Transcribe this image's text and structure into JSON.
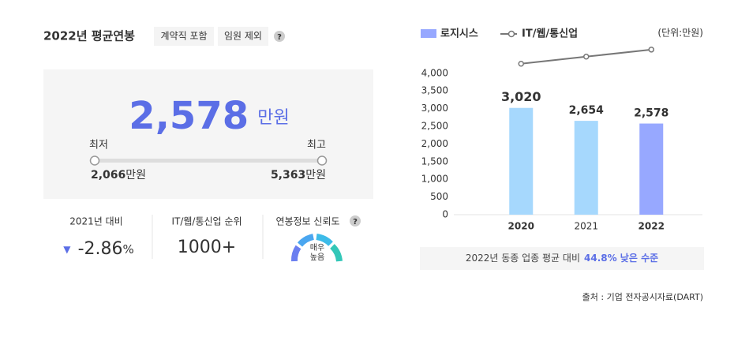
{
  "summary": {
    "title": "2022년 평균연봉",
    "tags": [
      "계약직 포함",
      "임원 제외"
    ],
    "help": "?",
    "amount": "2,578",
    "amount_unit": "만원",
    "min_label": "최저",
    "max_label": "최고",
    "min_amount": "2,066",
    "min_unit": "만원",
    "max_amount": "5,363",
    "max_unit": "만원"
  },
  "stats": [
    {
      "label": "2021년 대비",
      "arrow": "▼",
      "value": "-2.86",
      "unit": "%"
    },
    {
      "label": "IT/웹/통신업 순위",
      "value": "1000+"
    },
    {
      "label": "연봉정보 신뢰도",
      "help": "?",
      "gauge_text": [
        "매우",
        "높음"
      ]
    }
  ],
  "chart_data": {
    "type": "bar",
    "unit_note": "(단위:만원)",
    "categories": [
      "2020",
      "2021",
      "2022"
    ],
    "series": [
      {
        "name": "로지시스",
        "color": "#97a8ff",
        "bar_colors": [
          "#a6d8fd",
          "#a6d8fd",
          "#97a8ff"
        ],
        "values": [
          3020,
          2654,
          2578
        ],
        "value_labels": [
          "3,020",
          "2,654",
          "2,578"
        ]
      },
      {
        "name": "IT/웹/통신업",
        "type": "line",
        "color": "#777777",
        "values": [
          4270,
          4470,
          4670
        ]
      }
    ],
    "ylim": [
      0,
      4800
    ],
    "yticks": [
      0,
      500,
      {
        "value": 1000,
        "label": "1,000"
      },
      {
        "value": 1500,
        "label": "1,500"
      },
      {
        "value": 2000,
        "label": "2,000"
      },
      {
        "value": 2500,
        "label": "2,500"
      },
      {
        "value": 3000,
        "label": "3,000"
      },
      {
        "value": 3500,
        "label": "3,500"
      },
      {
        "value": 4000,
        "label": "4,000"
      }
    ],
    "grid": false
  },
  "footnote": [
    "2022년 동종 업종 평균 대비",
    "44.8% 낮은 수준"
  ],
  "source": "출처 : 기업 전자공시자료(DART)"
}
